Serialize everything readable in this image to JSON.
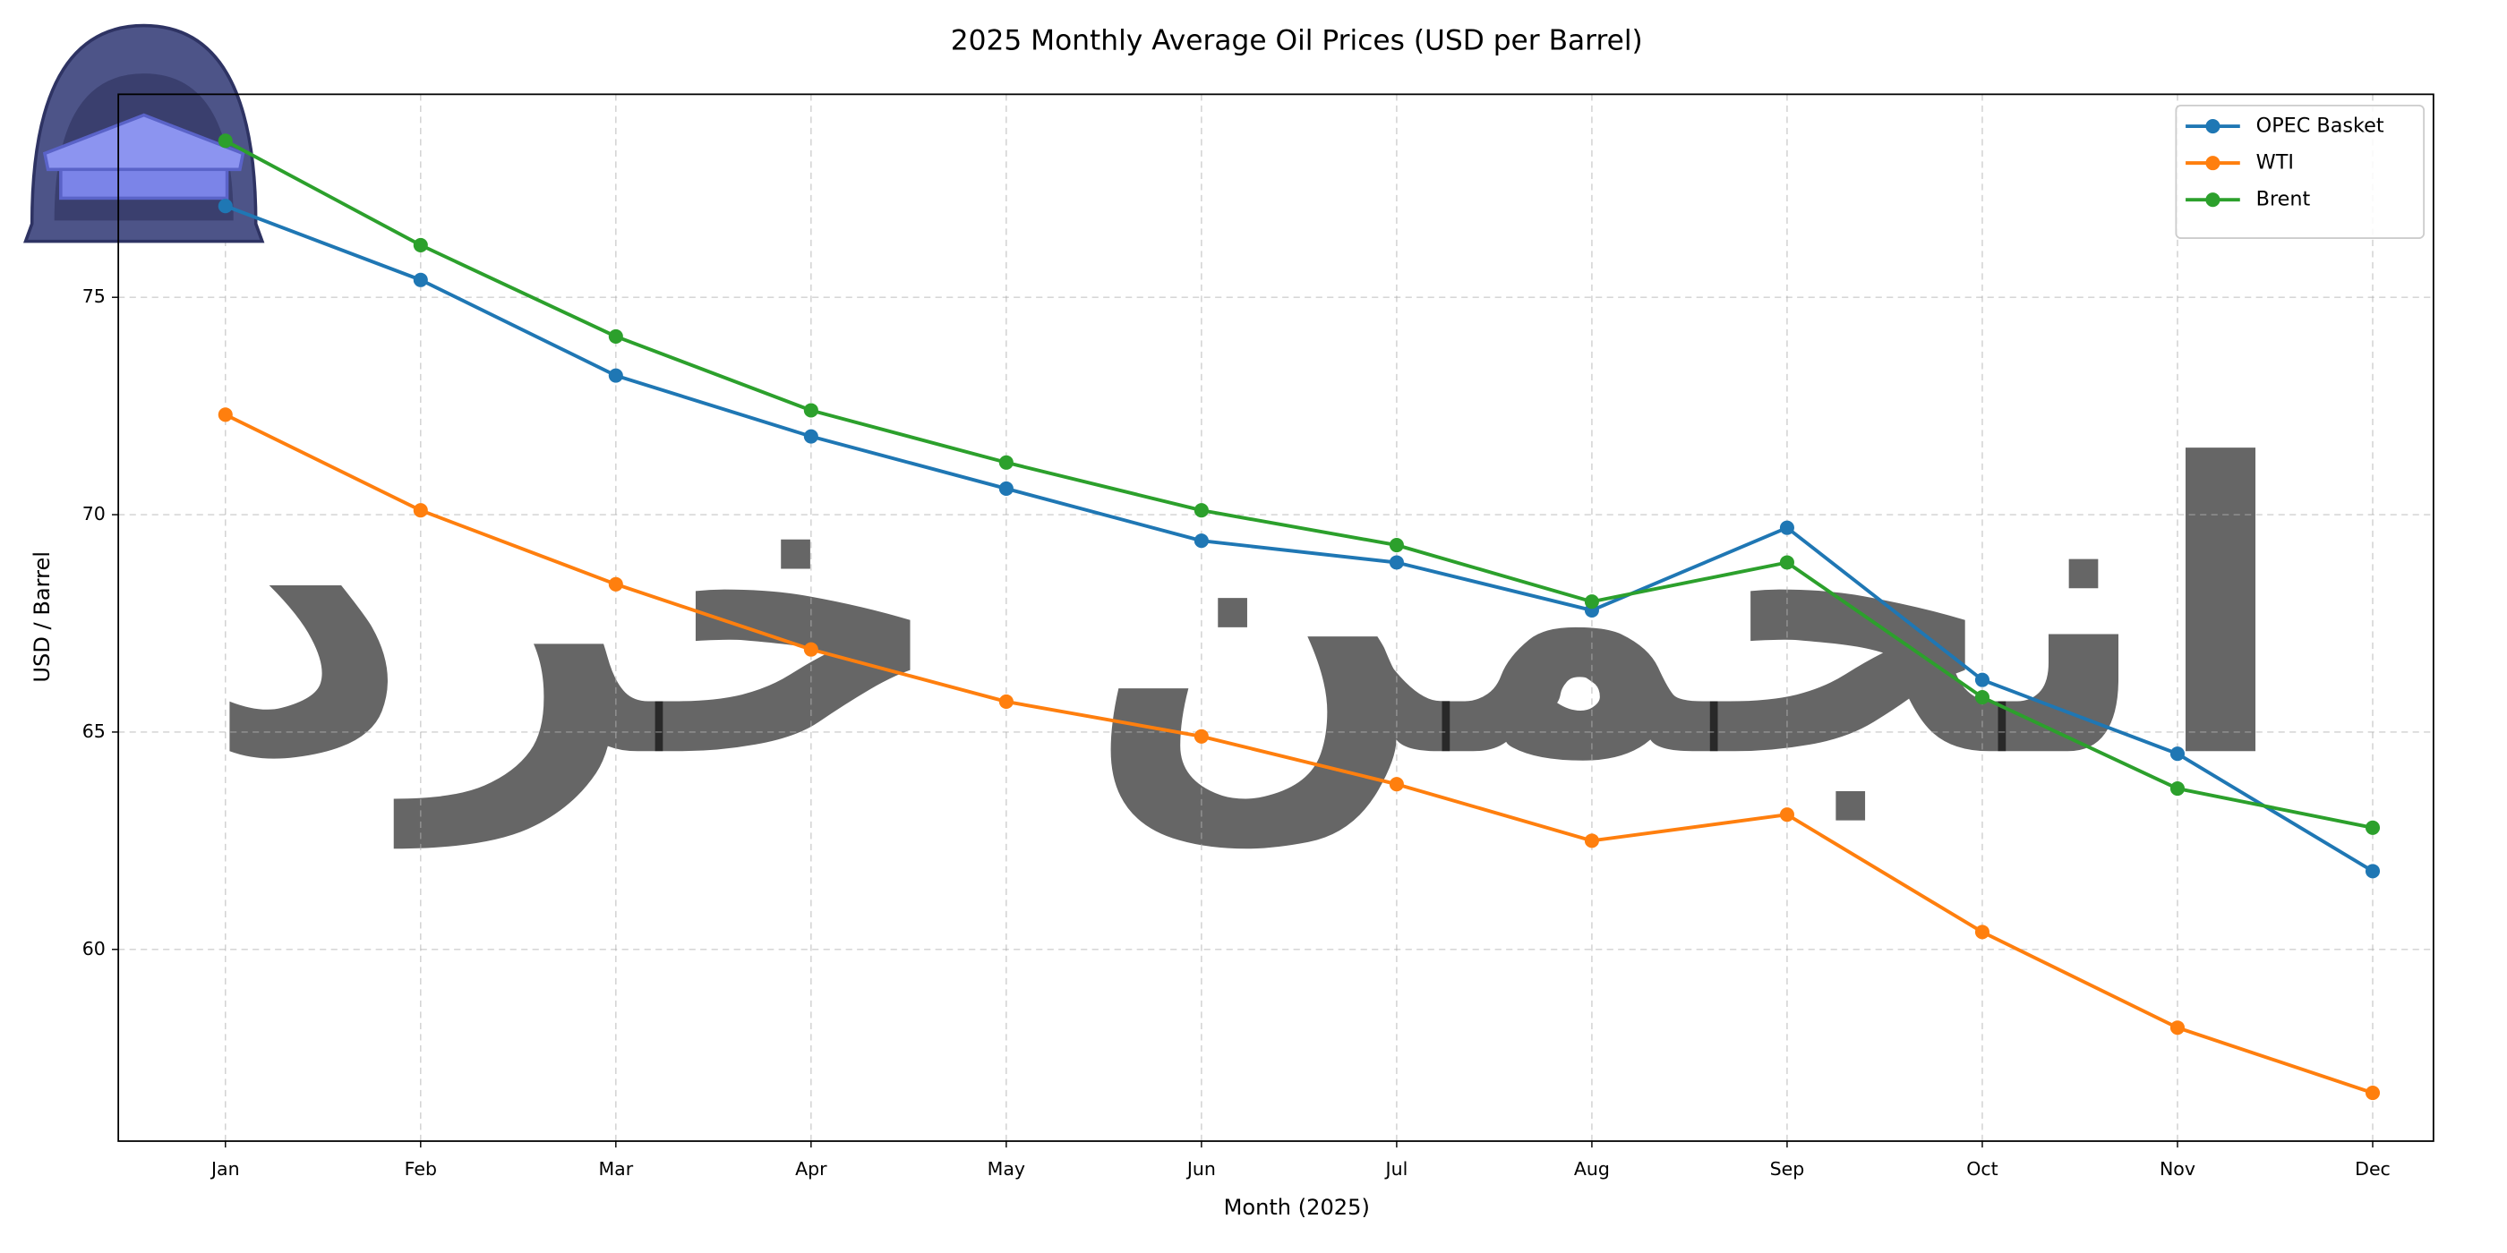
{
  "chart_data": {
    "type": "line",
    "title": "2025 Monthly Average Oil Prices (USD per Barrel)",
    "x_label": "Month (2025)",
    "y_label": "USD / Barrel",
    "watermark": "انجمن خرد",
    "categories": [
      "Jan",
      "Feb",
      "Mar",
      "Apr",
      "May",
      "Jun",
      "Jul",
      "Aug",
      "Sep",
      "Oct",
      "Nov",
      "Dec"
    ],
    "series": [
      {
        "name": "OPEC Basket",
        "color": "#1f77b4",
        "values": [
          77.1,
          75.4,
          73.2,
          71.8,
          70.6,
          69.4,
          68.9,
          67.8,
          69.7,
          66.2,
          64.5,
          61.8
        ]
      },
      {
        "name": "WTI",
        "color": "#ff7f0e",
        "values": [
          72.3,
          70.1,
          68.4,
          66.9,
          65.7,
          64.9,
          63.8,
          62.5,
          63.1,
          60.4,
          58.2,
          56.7
        ]
      },
      {
        "name": "Brent",
        "color": "#2ca02c",
        "values": [
          78.6,
          76.2,
          74.1,
          72.4,
          71.2,
          70.1,
          69.3,
          68.0,
          68.9,
          65.8,
          63.7,
          62.8
        ]
      }
    ],
    "ylim": [
      55.59,
      79.67
    ],
    "yticks": [
      60,
      65,
      70,
      75
    ],
    "grid": true,
    "legend": "upper right"
  }
}
